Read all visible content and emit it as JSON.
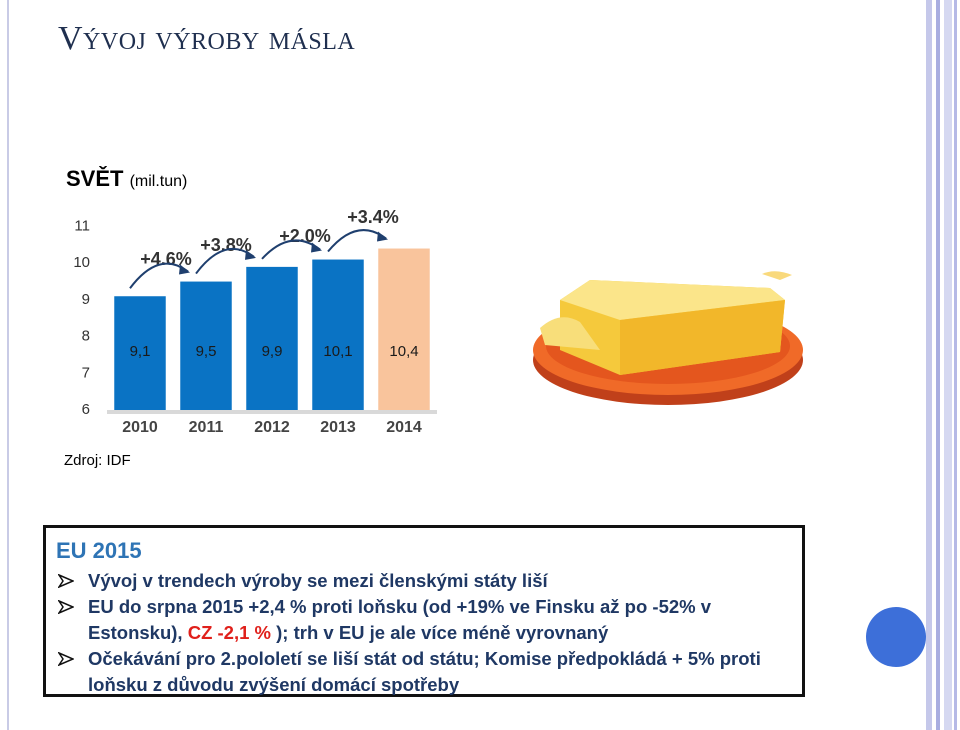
{
  "title": "Vývoj výroby másla",
  "region": "SVĚT",
  "unit": "(mil.tun)",
  "source": "Zdroj: IDF",
  "box": {
    "title": "EU 2015",
    "bullets": [
      [
        "Vývoj v trendech výroby se mezi členskými státy liší"
      ],
      [
        "EU do srpna 2015 +2,4 % proti loňsku (od +19% ve Finsku až po -52% v Estonsku), ",
        "CZ -2,1 %",
        " ); trh v EU je ale více méně vyrovnaný"
      ],
      [
        "Očekávání pro 2.pololetí se liší stát od státu; Komise předpokládá + 5% proti loňsku z důvodu zvýšení domácí spotřeby"
      ]
    ]
  },
  "chart_data": {
    "type": "bar",
    "categories": [
      "2010",
      "2011",
      "2012",
      "2013",
      "2014"
    ],
    "values": [
      9.1,
      9.5,
      9.9,
      10.1,
      10.4
    ],
    "value_labels": [
      "9,1",
      "9,5",
      "9,9",
      "10,1",
      "10,4"
    ],
    "colors": [
      "#0a73c4",
      "#0a73c4",
      "#0a73c4",
      "#0a73c4",
      "#f9c49c"
    ],
    "annotations": [
      "+4.6%",
      "+3.8%",
      "+2.0%",
      "+3.4%"
    ],
    "ylim": [
      6,
      11.45
    ],
    "yticks": [
      6,
      7,
      8,
      9,
      10,
      11
    ]
  }
}
